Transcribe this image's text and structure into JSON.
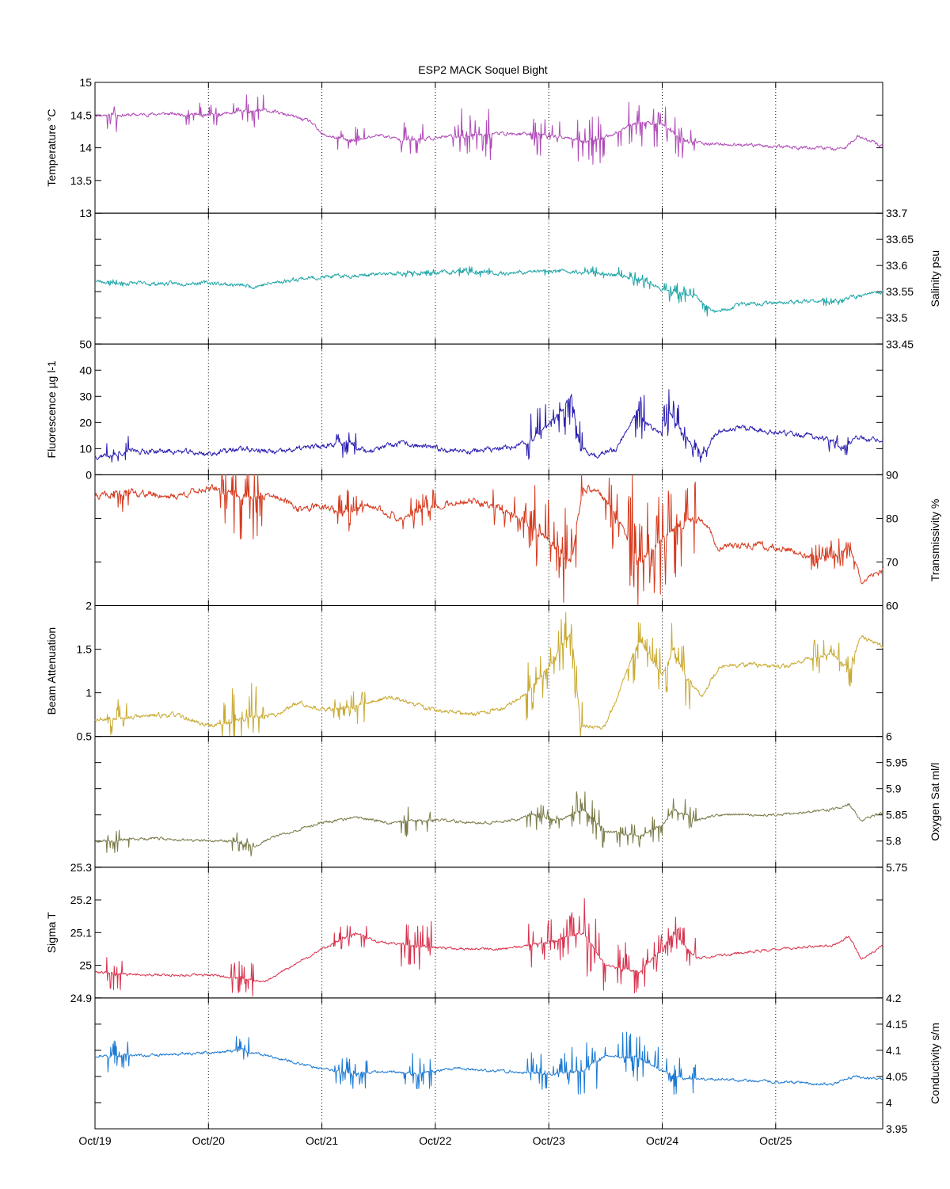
{
  "title": "ESP2 MACK  Soquel Bight",
  "x_tick_labels": [
    "Oct/19",
    "Oct/20",
    "Oct/21",
    "Oct/22",
    "Oct/23",
    "Oct/24",
    "Oct/25"
  ],
  "chart_data": [
    {
      "type": "line",
      "name": "temperature",
      "ylabel": "Temperature °C",
      "axis_side": "left",
      "ylim": [
        13,
        15
      ],
      "yticks": [
        13,
        13.5,
        14,
        14.5,
        15
      ],
      "ytick_labels": [
        "13",
        "13.5",
        "14",
        "14.5",
        "15"
      ],
      "color": "#b04ab8",
      "knots": [
        [
          0,
          14.5
        ],
        [
          0.3,
          14.5
        ],
        [
          0.6,
          14.52
        ],
        [
          1.0,
          14.5
        ],
        [
          1.3,
          14.55
        ],
        [
          1.5,
          14.58
        ],
        [
          1.7,
          14.5
        ],
        [
          1.9,
          14.4
        ],
        [
          2.0,
          14.2
        ],
        [
          2.3,
          14.1
        ],
        [
          2.5,
          14.2
        ],
        [
          2.7,
          14.12
        ],
        [
          3.0,
          14.15
        ],
        [
          3.5,
          14.22
        ],
        [
          4.0,
          14.2
        ],
        [
          4.3,
          14.1
        ],
        [
          4.5,
          14.15
        ],
        [
          4.8,
          14.4
        ],
        [
          5.0,
          14.35
        ],
        [
          5.2,
          14.1
        ],
        [
          5.5,
          14.05
        ],
        [
          6.0,
          14.02
        ],
        [
          6.3,
          14.0
        ],
        [
          6.6,
          13.98
        ],
        [
          6.72,
          14.18
        ],
        [
          6.85,
          14.1
        ],
        [
          6.95,
          14.0
        ]
      ],
      "noise": 0.02,
      "spike_regions": [
        [
          0.1,
          0.2,
          0.25
        ],
        [
          0.8,
          1.1,
          0.18
        ],
        [
          1.2,
          1.5,
          0.25
        ],
        [
          2.1,
          2.4,
          0.2
        ],
        [
          2.7,
          2.9,
          0.3
        ],
        [
          3.15,
          3.5,
          0.4
        ],
        [
          3.8,
          4.1,
          0.35
        ],
        [
          4.2,
          4.5,
          0.5
        ],
        [
          4.6,
          5.0,
          0.4
        ],
        [
          5.0,
          5.3,
          0.35
        ]
      ],
      "seed": 11
    },
    {
      "type": "line",
      "name": "salinity",
      "ylabel": "Salinity psu",
      "axis_side": "right",
      "ylim": [
        33.45,
        33.7
      ],
      "yticks": [
        33.45,
        33.5,
        33.55,
        33.6,
        33.65,
        33.7
      ],
      "ytick_labels": [
        "33.45",
        "33.5",
        "33.55",
        "33.6",
        "33.65",
        "33.7"
      ],
      "color": "#1fa6a8",
      "knots": [
        [
          0,
          33.57
        ],
        [
          0.5,
          33.565
        ],
        [
          1.0,
          33.567
        ],
        [
          1.4,
          33.56
        ],
        [
          1.8,
          33.575
        ],
        [
          2.2,
          33.58
        ],
        [
          2.7,
          33.585
        ],
        [
          3.2,
          33.588
        ],
        [
          3.6,
          33.585
        ],
        [
          4.0,
          33.59
        ],
        [
          4.5,
          33.585
        ],
        [
          4.8,
          33.575
        ],
        [
          5.0,
          33.555
        ],
        [
          5.3,
          33.54
        ],
        [
          5.45,
          33.51
        ],
        [
          5.7,
          33.525
        ],
        [
          6.0,
          33.53
        ],
        [
          6.3,
          33.53
        ],
        [
          6.6,
          33.535
        ],
        [
          6.8,
          33.545
        ],
        [
          6.95,
          33.55
        ]
      ],
      "noise": 0.003,
      "spike_regions": [
        [
          0.1,
          0.3,
          0.01
        ],
        [
          2.6,
          3.0,
          0.008
        ],
        [
          3.2,
          3.5,
          0.01
        ],
        [
          3.9,
          4.1,
          0.008
        ],
        [
          4.3,
          4.5,
          0.012
        ],
        [
          4.6,
          4.9,
          0.015
        ],
        [
          5.0,
          5.4,
          0.02
        ],
        [
          6.4,
          6.6,
          0.01
        ]
      ],
      "seed": 23
    },
    {
      "type": "line",
      "name": "fluorescence",
      "ylabel": "Fluorescence µg l-1",
      "axis_side": "left",
      "ylim": [
        0,
        50
      ],
      "yticks": [
        0,
        10,
        20,
        30,
        40,
        50
      ],
      "ytick_labels": [
        "0",
        "10",
        "20",
        "30",
        "40",
        "50"
      ],
      "color": "#2a1fb0",
      "knots": [
        [
          0,
          7
        ],
        [
          0.3,
          9
        ],
        [
          0.7,
          9
        ],
        [
          1.0,
          8
        ],
        [
          1.3,
          10
        ],
        [
          1.6,
          8.5
        ],
        [
          1.8,
          10
        ],
        [
          2.0,
          11
        ],
        [
          2.2,
          13
        ],
        [
          2.4,
          9
        ],
        [
          2.7,
          12
        ],
        [
          3.0,
          10
        ],
        [
          3.3,
          9
        ],
        [
          3.6,
          10
        ],
        [
          3.8,
          12
        ],
        [
          3.95,
          17
        ],
        [
          4.1,
          24
        ],
        [
          4.2,
          30
        ],
        [
          4.28,
          10
        ],
        [
          4.4,
          7
        ],
        [
          4.6,
          10
        ],
        [
          4.78,
          25
        ],
        [
          4.85,
          20
        ],
        [
          5.0,
          15
        ],
        [
          5.05,
          24
        ],
        [
          5.2,
          15
        ],
        [
          5.35,
          8
        ],
        [
          5.5,
          17
        ],
        [
          5.7,
          18
        ],
        [
          6.0,
          16
        ],
        [
          6.3,
          15
        ],
        [
          6.5,
          13
        ],
        [
          6.6,
          10
        ],
        [
          6.7,
          14
        ],
        [
          6.95,
          13
        ]
      ],
      "noise": 0.8,
      "spike_regions": [
        [
          0.1,
          0.3,
          6
        ],
        [
          2.1,
          2.3,
          6
        ],
        [
          3.8,
          4.2,
          12
        ],
        [
          4.2,
          4.3,
          10
        ],
        [
          4.75,
          4.85,
          10
        ],
        [
          5.0,
          5.25,
          10
        ],
        [
          5.25,
          5.4,
          4
        ],
        [
          6.45,
          6.65,
          4
        ]
      ],
      "seed": 37
    },
    {
      "type": "line",
      "name": "transmissivity",
      "ylabel": "Transmissivity %",
      "axis_side": "right",
      "ylim": [
        60,
        90
      ],
      "yticks": [
        60,
        70,
        80,
        90
      ],
      "ytick_labels": [
        "60",
        "70",
        "80",
        "90"
      ],
      "color": "#d63a1e",
      "knots": [
        [
          0,
          85
        ],
        [
          0.3,
          86
        ],
        [
          0.7,
          85
        ],
        [
          1.0,
          87
        ],
        [
          1.3,
          85
        ],
        [
          1.6,
          85
        ],
        [
          1.8,
          82
        ],
        [
          2.0,
          83
        ],
        [
          2.2,
          81
        ],
        [
          2.4,
          83
        ],
        [
          2.7,
          80
        ],
        [
          3.0,
          83
        ],
        [
          3.3,
          84
        ],
        [
          3.6,
          82
        ],
        [
          3.8,
          79
        ],
        [
          4.0,
          75
        ],
        [
          4.2,
          70
        ],
        [
          4.3,
          87
        ],
        [
          4.45,
          86
        ],
        [
          4.6,
          80
        ],
        [
          4.8,
          70
        ],
        [
          5.0,
          75
        ],
        [
          5.2,
          79
        ],
        [
          5.35,
          80
        ],
        [
          5.5,
          73
        ],
        [
          5.8,
          74
        ],
        [
          6.1,
          73
        ],
        [
          6.3,
          71
        ],
        [
          6.5,
          71
        ],
        [
          6.65,
          74
        ],
        [
          6.75,
          66
        ],
        [
          6.95,
          68
        ]
      ],
      "noise": 0.6,
      "spike_regions": [
        [
          0.1,
          0.3,
          4
        ],
        [
          1.1,
          1.5,
          10
        ],
        [
          2.1,
          2.4,
          5
        ],
        [
          2.7,
          3.0,
          4
        ],
        [
          3.5,
          3.9,
          5
        ],
        [
          3.85,
          4.3,
          12
        ],
        [
          4.5,
          4.8,
          10
        ],
        [
          4.7,
          5.3,
          12
        ],
        [
          6.3,
          6.7,
          4
        ]
      ],
      "seed": 41
    },
    {
      "type": "line",
      "name": "beam_attenuation",
      "ylabel": "Beam Attenuation",
      "axis_side": "left",
      "ylim": [
        0.5,
        2
      ],
      "yticks": [
        0.5,
        1,
        1.5,
        2
      ],
      "ytick_labels": [
        "0.5",
        "1",
        "1.5",
        "2"
      ],
      "color": "#c9aa32",
      "knots": [
        [
          0,
          0.7
        ],
        [
          0.3,
          0.72
        ],
        [
          0.7,
          0.75
        ],
        [
          1.0,
          0.62
        ],
        [
          1.3,
          0.7
        ],
        [
          1.6,
          0.75
        ],
        [
          1.8,
          0.9
        ],
        [
          2.0,
          0.8
        ],
        [
          2.3,
          0.85
        ],
        [
          2.6,
          0.95
        ],
        [
          3.0,
          0.8
        ],
        [
          3.3,
          0.75
        ],
        [
          3.6,
          0.82
        ],
        [
          3.8,
          1.0
        ],
        [
          4.0,
          1.3
        ],
        [
          4.2,
          1.7
        ],
        [
          4.28,
          0.6
        ],
        [
          4.5,
          0.62
        ],
        [
          4.8,
          1.6
        ],
        [
          5.0,
          1.2
        ],
        [
          5.1,
          1.5
        ],
        [
          5.2,
          1.2
        ],
        [
          5.35,
          0.95
        ],
        [
          5.5,
          1.3
        ],
        [
          5.8,
          1.32
        ],
        [
          6.1,
          1.3
        ],
        [
          6.3,
          1.4
        ],
        [
          6.5,
          1.45
        ],
        [
          6.65,
          1.25
        ],
        [
          6.75,
          1.65
        ],
        [
          6.95,
          1.55
        ]
      ],
      "noise": 0.02,
      "spike_regions": [
        [
          0.1,
          0.3,
          0.2
        ],
        [
          1.1,
          1.5,
          0.4
        ],
        [
          2.1,
          2.4,
          0.2
        ],
        [
          3.8,
          4.3,
          0.35
        ],
        [
          4.7,
          5.25,
          0.35
        ],
        [
          6.3,
          6.7,
          0.2
        ]
      ],
      "seed": 53
    },
    {
      "type": "line",
      "name": "oxygen_saturation",
      "ylabel": "Oxygen Sat ml/l",
      "axis_side": "right",
      "ylim": [
        5.75,
        6
      ],
      "yticks": [
        5.75,
        5.8,
        5.85,
        5.9,
        5.95,
        6
      ],
      "ytick_labels": [
        "5.75",
        "5.8",
        "5.85",
        "5.9",
        "5.95",
        "6"
      ],
      "color": "#7a7a48",
      "knots": [
        [
          0,
          5.8
        ],
        [
          0.5,
          5.805
        ],
        [
          1.0,
          5.8
        ],
        [
          1.2,
          5.8
        ],
        [
          1.4,
          5.79
        ],
        [
          1.6,
          5.81
        ],
        [
          2.0,
          5.835
        ],
        [
          2.3,
          5.845
        ],
        [
          2.6,
          5.835
        ],
        [
          3.0,
          5.84
        ],
        [
          3.4,
          5.835
        ],
        [
          3.7,
          5.84
        ],
        [
          3.85,
          5.85
        ],
        [
          4.1,
          5.84
        ],
        [
          4.3,
          5.86
        ],
        [
          4.5,
          5.82
        ],
        [
          4.8,
          5.81
        ],
        [
          5.0,
          5.83
        ],
        [
          5.1,
          5.86
        ],
        [
          5.3,
          5.84
        ],
        [
          5.5,
          5.85
        ],
        [
          6.0,
          5.85
        ],
        [
          6.5,
          5.86
        ],
        [
          6.65,
          5.87
        ],
        [
          6.75,
          5.84
        ],
        [
          6.95,
          5.855
        ]
      ],
      "noise": 0.002,
      "spike_regions": [
        [
          0.1,
          0.3,
          0.025
        ],
        [
          1.2,
          1.4,
          0.02
        ],
        [
          2.7,
          3.0,
          0.03
        ],
        [
          3.8,
          4.1,
          0.025
        ],
        [
          4.2,
          4.5,
          0.04
        ],
        [
          4.6,
          5.0,
          0.03
        ],
        [
          5.0,
          5.3,
          0.03
        ]
      ],
      "seed": 67
    },
    {
      "type": "line",
      "name": "sigma_t",
      "ylabel": "Sigma T",
      "axis_side": "left",
      "ylim": [
        24.9,
        25.3
      ],
      "yticks": [
        24.9,
        25,
        25.1,
        25.2,
        25.3
      ],
      "ytick_labels": [
        "24.9",
        "25",
        "25.1",
        "25.2",
        "25.3"
      ],
      "color": "#d8324e",
      "knots": [
        [
          0,
          24.98
        ],
        [
          0.5,
          24.97
        ],
        [
          1.0,
          24.97
        ],
        [
          1.3,
          24.96
        ],
        [
          1.5,
          24.95
        ],
        [
          1.7,
          24.99
        ],
        [
          2.0,
          25.05
        ],
        [
          2.3,
          25.1
        ],
        [
          2.5,
          25.07
        ],
        [
          2.8,
          25.06
        ],
        [
          3.2,
          25.05
        ],
        [
          3.6,
          25.05
        ],
        [
          4.0,
          25.07
        ],
        [
          4.3,
          25.1
        ],
        [
          4.5,
          25.0
        ],
        [
          4.8,
          24.98
        ],
        [
          5.0,
          25.05
        ],
        [
          5.1,
          25.1
        ],
        [
          5.3,
          25.02
        ],
        [
          5.5,
          25.03
        ],
        [
          6.0,
          25.05
        ],
        [
          6.5,
          25.06
        ],
        [
          6.65,
          25.09
        ],
        [
          6.75,
          25.02
        ],
        [
          6.95,
          25.06
        ]
      ],
      "noise": 0.003,
      "spike_regions": [
        [
          0.1,
          0.3,
          0.06
        ],
        [
          1.2,
          1.4,
          0.05
        ],
        [
          2.1,
          2.4,
          0.04
        ],
        [
          2.7,
          3.0,
          0.08
        ],
        [
          3.8,
          4.2,
          0.07
        ],
        [
          4.2,
          4.5,
          0.12
        ],
        [
          4.6,
          5.0,
          0.08
        ],
        [
          5.0,
          5.3,
          0.06
        ]
      ],
      "seed": 79
    },
    {
      "type": "line",
      "name": "conductivity",
      "ylabel": "Conductivity s/m",
      "axis_side": "right",
      "ylim": [
        3.95,
        4.2
      ],
      "yticks": [
        3.95,
        4,
        4.05,
        4.1,
        4.15,
        4.2
      ],
      "ytick_labels": [
        "3.95",
        "4",
        "4.05",
        "4.1",
        "4.15",
        "4.2"
      ],
      "color": "#1c7ad4",
      "knots": [
        [
          0,
          4.09
        ],
        [
          0.5,
          4.09
        ],
        [
          1.0,
          4.095
        ],
        [
          1.3,
          4.1
        ],
        [
          1.6,
          4.085
        ],
        [
          2.0,
          4.065
        ],
        [
          2.3,
          4.055
        ],
        [
          2.5,
          4.06
        ],
        [
          2.8,
          4.055
        ],
        [
          3.2,
          4.065
        ],
        [
          3.6,
          4.06
        ],
        [
          4.0,
          4.055
        ],
        [
          4.3,
          4.06
        ],
        [
          4.5,
          4.09
        ],
        [
          4.8,
          4.085
        ],
        [
          5.0,
          4.06
        ],
        [
          5.2,
          4.045
        ],
        [
          5.5,
          4.045
        ],
        [
          6.0,
          4.04
        ],
        [
          6.5,
          4.035
        ],
        [
          6.7,
          4.05
        ],
        [
          6.95,
          4.045
        ]
      ],
      "noise": 0.002,
      "spike_regions": [
        [
          0.1,
          0.3,
          0.03
        ],
        [
          1.2,
          1.4,
          0.03
        ],
        [
          2.1,
          2.4,
          0.03
        ],
        [
          2.7,
          3.0,
          0.04
        ],
        [
          3.8,
          4.2,
          0.04
        ],
        [
          4.2,
          4.5,
          0.06
        ],
        [
          4.6,
          5.0,
          0.05
        ],
        [
          5.0,
          5.3,
          0.04
        ]
      ],
      "seed": 97
    }
  ]
}
